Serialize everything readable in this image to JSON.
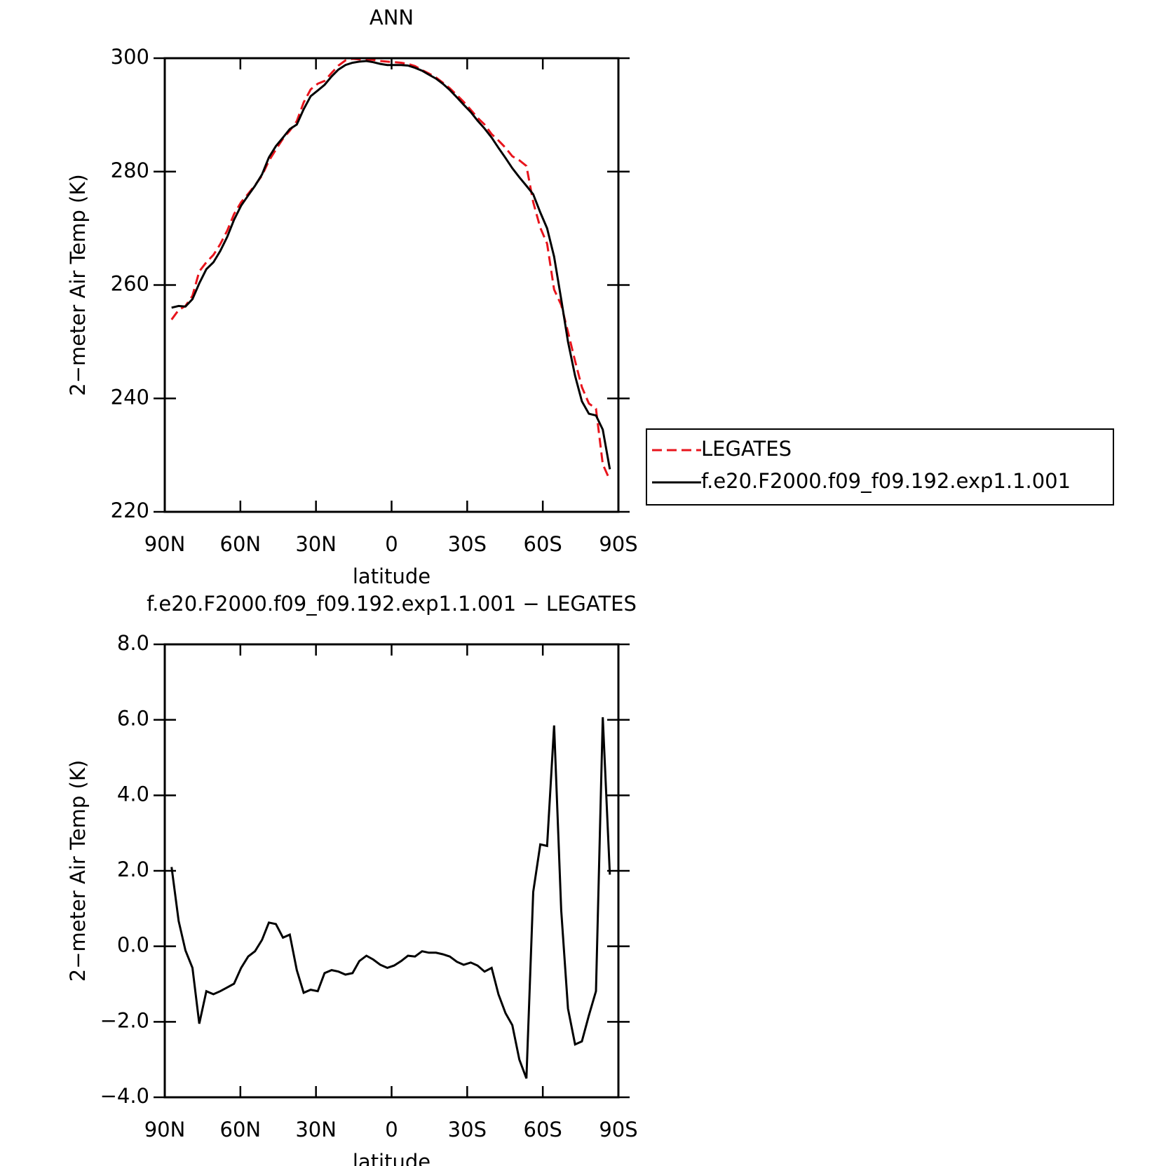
{
  "chart_data": [
    {
      "type": "line",
      "title": "ANN",
      "xlabel": "latitude",
      "ylabel": "2−meter Air Temp (K)",
      "x": [
        87.3,
        84.5,
        81.8,
        79.0,
        76.3,
        73.5,
        70.7,
        68.0,
        65.2,
        62.5,
        59.7,
        56.9,
        54.2,
        51.4,
        48.7,
        45.9,
        43.1,
        40.4,
        37.6,
        34.9,
        32.1,
        29.3,
        26.6,
        23.8,
        21.1,
        18.3,
        15.5,
        12.8,
        10.0,
        7.3,
        4.5,
        1.7,
        -1.0,
        -3.8,
        -6.5,
        -9.3,
        -12.1,
        -14.8,
        -17.6,
        -20.3,
        -23.1,
        -25.9,
        -28.6,
        -31.4,
        -34.1,
        -36.9,
        -39.7,
        -42.4,
        -45.2,
        -47.9,
        -50.7,
        -53.5,
        -56.2,
        -59.0,
        -61.7,
        -64.5,
        -67.3,
        -70.0,
        -72.8,
        -75.5,
        -78.3,
        -81.1,
        -83.8,
        -86.6
      ],
      "series": [
        {
          "name": "LEGATES",
          "color": "#e8141c",
          "style": "dashed",
          "values": [
            253.9,
            255.6,
            256.3,
            258.1,
            262.4,
            264.0,
            265.3,
            267.2,
            269.6,
            272.5,
            274.6,
            276.1,
            277.6,
            279.3,
            281.9,
            283.9,
            285.8,
            287.2,
            288.9,
            292.2,
            294.5,
            295.5,
            296.0,
            297.4,
            298.7,
            299.6,
            299.9,
            299.8,
            299.8,
            299.7,
            299.5,
            299.4,
            299.3,
            299.2,
            299.0,
            298.6,
            297.9,
            297.3,
            296.6,
            295.7,
            294.7,
            293.5,
            292.3,
            290.9,
            289.5,
            288.3,
            286.6,
            285.5,
            284.2,
            282.7,
            282.0,
            281.0,
            274.6,
            270.1,
            267.3,
            259.2,
            256.5,
            251.7,
            246.6,
            242.0,
            239.1,
            238.2,
            228.4,
            225.6
          ]
        },
        {
          "name": "f.e20.F2000.f09_f09.192.exp1.1.001",
          "color": "#000000",
          "style": "solid",
          "values": [
            256.0,
            256.3,
            256.2,
            257.5,
            260.3,
            262.8,
            264.0,
            266.0,
            268.5,
            271.5,
            274.0,
            275.8,
            277.5,
            279.5,
            282.5,
            284.5,
            286.0,
            287.5,
            288.3,
            291.0,
            293.3,
            294.3,
            295.3,
            296.8,
            298.0,
            298.8,
            299.2,
            299.4,
            299.5,
            299.3,
            299.0,
            298.8,
            298.8,
            298.8,
            298.7,
            298.3,
            297.8,
            297.1,
            296.4,
            295.5,
            294.4,
            293.1,
            291.8,
            290.5,
            289.0,
            287.6,
            286.0,
            284.2,
            282.4,
            280.6,
            279.0,
            277.5,
            276.0,
            272.8,
            270.0,
            265.0,
            257.5,
            250.0,
            244.0,
            239.5,
            237.3,
            237.0,
            234.5,
            227.5
          ]
        }
      ],
      "xlim": [
        90,
        -90
      ],
      "xticks": [
        {
          "value": 90,
          "label": "90N"
        },
        {
          "value": 60,
          "label": "60N"
        },
        {
          "value": 30,
          "label": "30N"
        },
        0,
        {
          "value": -30,
          "label": "30S"
        },
        {
          "value": -60,
          "label": "60S"
        },
        {
          "value": -90,
          "label": "90S"
        }
      ],
      "ylim": [
        220,
        300
      ],
      "yticks": [
        220,
        240,
        260,
        280,
        300
      ],
      "legend": "right"
    },
    {
      "type": "line",
      "title": "f.e20.F2000.f09_f09.192.exp1.1.001 − LEGATES",
      "xlabel": "latitude",
      "ylabel": "2−meter Air Temp (K)",
      "x": [
        87.3,
        84.5,
        81.8,
        79.0,
        76.3,
        73.5,
        70.7,
        68.0,
        65.2,
        62.5,
        59.7,
        56.9,
        54.2,
        51.4,
        48.7,
        45.9,
        43.1,
        40.4,
        37.6,
        34.9,
        32.1,
        29.3,
        26.6,
        23.8,
        21.1,
        18.3,
        15.5,
        12.8,
        10.0,
        7.3,
        4.5,
        1.7,
        -1.0,
        -3.8,
        -6.5,
        -9.3,
        -12.1,
        -14.8,
        -17.6,
        -20.3,
        -23.1,
        -25.9,
        -28.6,
        -31.4,
        -34.1,
        -36.9,
        -39.7,
        -42.4,
        -45.2,
        -47.9,
        -50.7,
        -53.5,
        -56.2,
        -59.0,
        -61.7,
        -64.5,
        -67.3,
        -70.0,
        -72.8,
        -75.5,
        -78.3,
        -81.1,
        -83.8,
        -86.6
      ],
      "series": [
        {
          "color": "#000000",
          "style": "solid",
          "values": [
            2.1,
            0.67,
            -0.11,
            -0.57,
            -2.05,
            -1.19,
            -1.27,
            -1.19,
            -1.09,
            -0.99,
            -0.57,
            -0.27,
            -0.13,
            0.17,
            0.63,
            0.59,
            0.23,
            0.31,
            -0.63,
            -1.23,
            -1.15,
            -1.19,
            -0.71,
            -0.63,
            -0.67,
            -0.75,
            -0.71,
            -0.39,
            -0.25,
            -0.35,
            -0.49,
            -0.57,
            -0.51,
            -0.39,
            -0.25,
            -0.27,
            -0.13,
            -0.17,
            -0.17,
            -0.21,
            -0.27,
            -0.41,
            -0.49,
            -0.43,
            -0.51,
            -0.67,
            -0.57,
            -1.27,
            -1.77,
            -2.09,
            -3.0,
            -3.5,
            1.44,
            2.7,
            2.66,
            5.85,
            0.96,
            -1.65,
            -2.6,
            -2.52,
            -1.83,
            -1.19,
            6.07,
            1.9
          ]
        }
      ],
      "xlim": [
        90,
        -90
      ],
      "xticks": [
        {
          "value": 90,
          "label": "90N"
        },
        {
          "value": 60,
          "label": "60N"
        },
        {
          "value": 30,
          "label": "30N"
        },
        0,
        {
          "value": -30,
          "label": "30S"
        },
        {
          "value": -60,
          "label": "60S"
        },
        {
          "value": -90,
          "label": "90S"
        }
      ],
      "ylim": [
        -4,
        8
      ],
      "yticks": [
        {
          "value": -4,
          "label": "−4.0"
        },
        {
          "value": -2,
          "label": "−2.0"
        },
        {
          "value": 0,
          "label": "0.0"
        },
        {
          "value": 2,
          "label": "2.0"
        },
        {
          "value": 4,
          "label": "4.0"
        },
        {
          "value": 6,
          "label": "6.0"
        },
        {
          "value": 8,
          "label": "8.0"
        }
      ]
    }
  ]
}
